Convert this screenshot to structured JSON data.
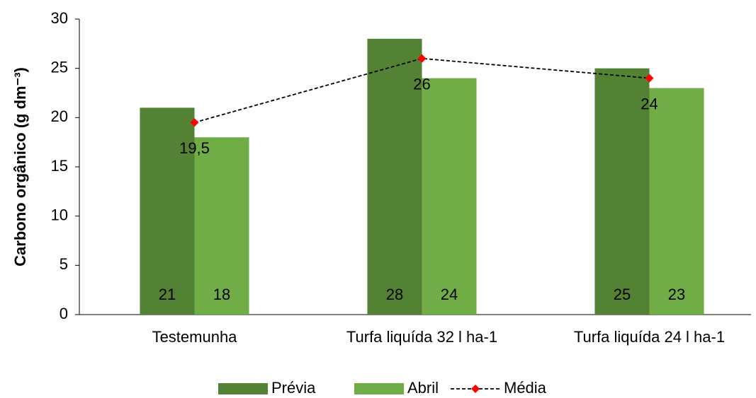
{
  "chart_data": {
    "type": "bar",
    "ylabel": "Carbono orgânico  (g dm⁻³)",
    "categories": [
      "Testemunha",
      "Turfa liquída 32 l ha-1",
      "Turfa liquída 24 l ha-1"
    ],
    "series": [
      {
        "name": "Prévia",
        "color": "#548235",
        "values": [
          21,
          28,
          25
        ]
      },
      {
        "name": "Abril",
        "color": "#70ad47",
        "values": [
          18,
          24,
          23
        ]
      },
      {
        "name": "Média",
        "type": "line",
        "color": "#ff0000",
        "values": [
          19.5,
          26,
          24
        ],
        "value_labels": [
          "19,5",
          "26",
          "24"
        ]
      }
    ],
    "ylim": [
      0,
      30
    ],
    "yticks": [
      0,
      5,
      10,
      15,
      20,
      25,
      30
    ],
    "legend": "bottom"
  }
}
